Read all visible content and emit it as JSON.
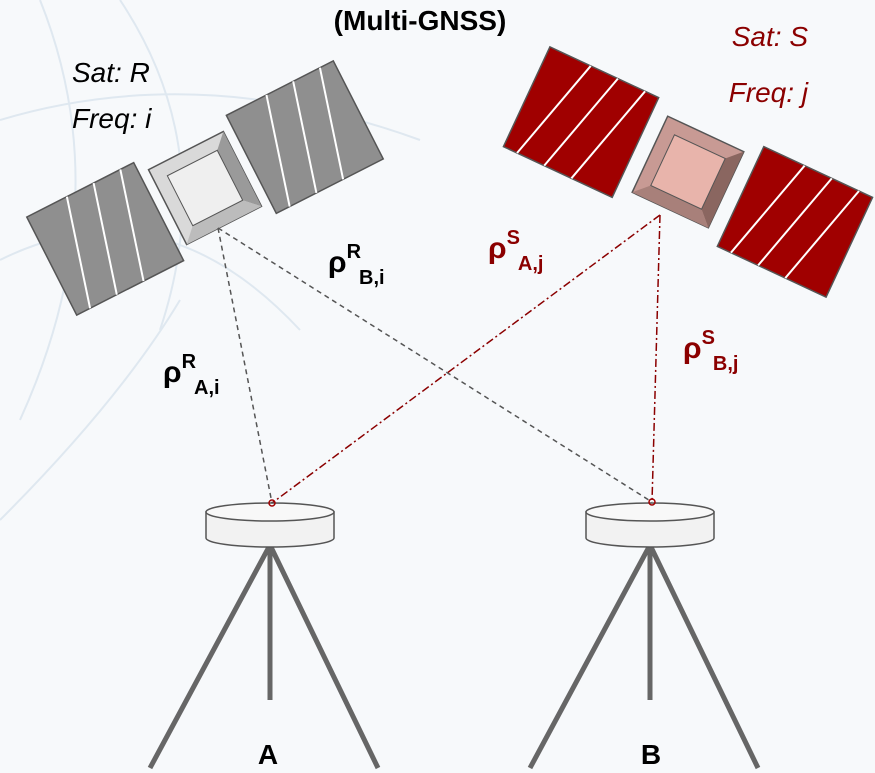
{
  "title": "(Multi-GNSS)",
  "satellites": [
    {
      "name": "Sat: R",
      "frequency": "Freq: i"
    },
    {
      "name": "Sat: S",
      "frequency": "Freq: j"
    }
  ],
  "ranges": [
    {
      "symbol": "ρ",
      "satellite": "R",
      "receiver": "B,i"
    },
    {
      "symbol": "ρ",
      "satellite": "S",
      "receiver": "A,j"
    },
    {
      "symbol": "ρ",
      "satellite": "R",
      "receiver": "A,i"
    },
    {
      "symbol": "ρ",
      "satellite": "S",
      "receiver": "B,j"
    }
  ],
  "receivers": [
    {
      "label": "A"
    },
    {
      "label": "B"
    }
  ]
}
